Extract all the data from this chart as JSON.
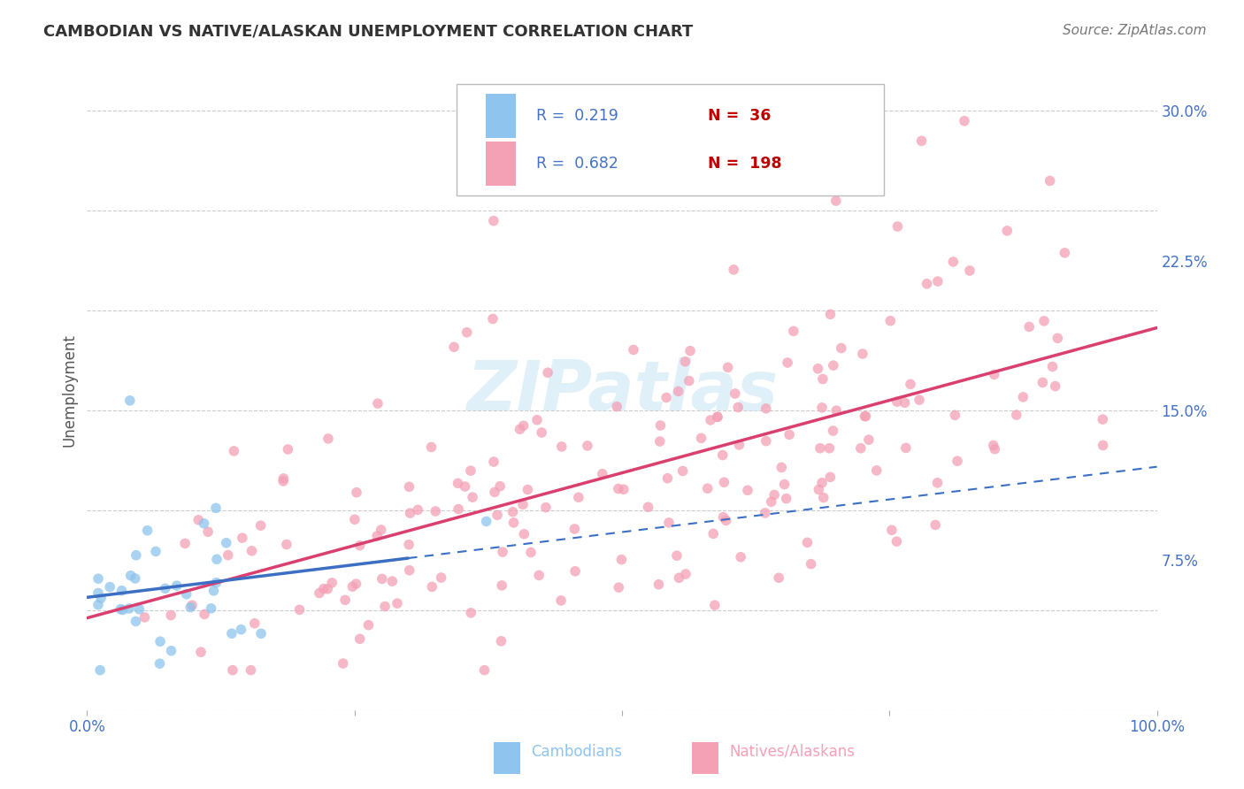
{
  "title": "CAMBODIAN VS NATIVE/ALASKAN UNEMPLOYMENT CORRELATION CHART",
  "source": "Source: ZipAtlas.com",
  "ylabel": "Unemployment",
  "xlim": [
    0.0,
    1.0
  ],
  "ylim": [
    0.0,
    0.32
  ],
  "yticks": [
    0.075,
    0.15,
    0.225,
    0.3
  ],
  "yticklabels": [
    "7.5%",
    "15.0%",
    "22.5%",
    "30.0%"
  ],
  "cambodian_R": 0.219,
  "cambodian_N": 36,
  "native_R": 0.682,
  "native_N": 198,
  "cambodian_color": "#8ec4ed",
  "native_color": "#f4a0b5",
  "trend_cambodian_color": "#3b6fc4",
  "trend_native_color": "#d94070",
  "legend_R_color": "#4472c4",
  "legend_N_color": "#c00000",
  "watermark": "ZIPatlas",
  "background_color": "#ffffff",
  "grid_color": "#cccccc",
  "title_color": "#333333",
  "source_color": "#777777",
  "ylabel_color": "#555555",
  "tick_label_color": "#4472c4"
}
